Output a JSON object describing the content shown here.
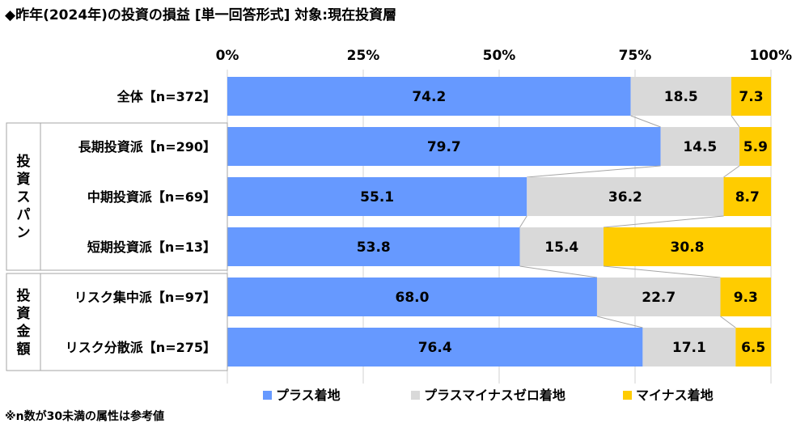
{
  "title": "◆昨年(2024年)の投資の損益 [単一回答形式] 対象:現在投資層",
  "note": "※n数が30未満の属性は参考値",
  "colors": {
    "plus": "#6699FF",
    "zero": "#D9D9D9",
    "minus": "#FFCC00"
  },
  "chart_data": {
    "type": "bar",
    "stacked": "horizontal-100",
    "x_tick_labels": [
      "0%",
      "25%",
      "50%",
      "75%",
      "100%"
    ],
    "xlim": [
      0,
      100
    ],
    "grid": true,
    "legend_position": "bottom",
    "categories": [
      "全体【n=372】",
      "長期投資派【n=290】",
      "中期投資派【n=69】",
      "短期投資派【n=13】",
      "リスク集中派【n=97】",
      "リスク分散派【n=275】"
    ],
    "groups": [
      {
        "label": "投資スパン",
        "rows": [
          1,
          2,
          3
        ]
      },
      {
        "label": "投資金額",
        "rows": [
          4,
          5
        ]
      }
    ],
    "series": [
      {
        "name": "プラス着地",
        "values": [
          74.2,
          79.7,
          55.1,
          53.8,
          68.0,
          76.4
        ],
        "labels": [
          "74.2",
          "79.7",
          "55.1",
          "53.8",
          "68.0",
          "76.4"
        ]
      },
      {
        "name": "プラスマイナスゼロ着地",
        "values": [
          18.5,
          14.5,
          36.2,
          15.4,
          22.7,
          17.1
        ],
        "labels": [
          "18.5",
          "14.5",
          "36.2",
          "15.4",
          "22.7",
          "17.1"
        ]
      },
      {
        "name": "マイナス着地",
        "values": [
          7.3,
          5.9,
          8.7,
          30.8,
          9.3,
          6.5
        ],
        "labels": [
          "7.3",
          "5.9",
          "8.7",
          "30.8",
          "9.3",
          "6.5"
        ]
      }
    ]
  }
}
